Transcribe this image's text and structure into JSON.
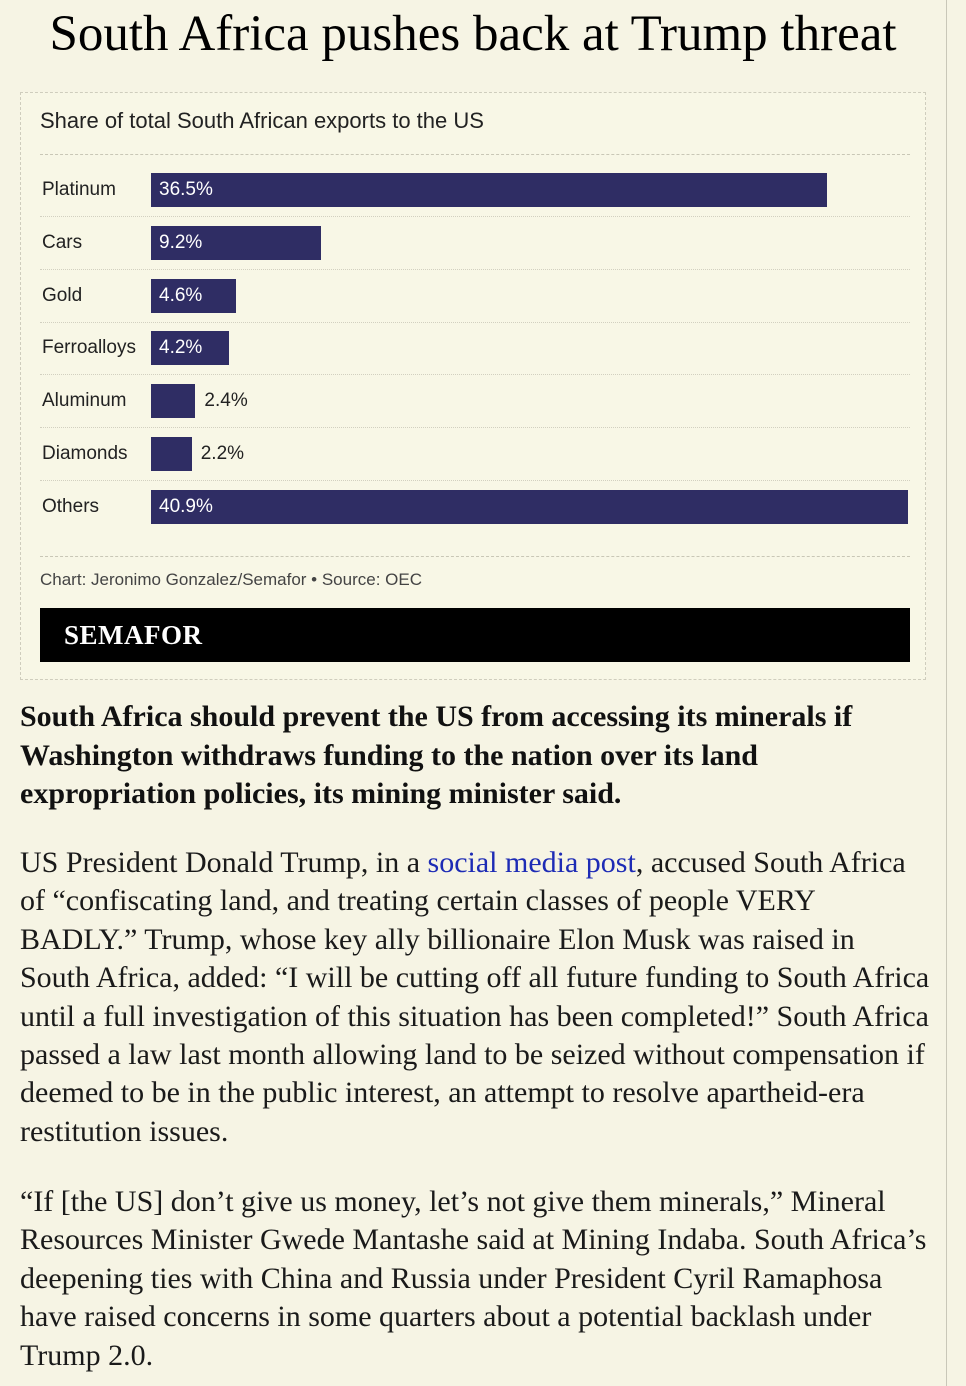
{
  "article": {
    "headline": "South Africa pushes back at Trump threat",
    "lede": "South Africa should prevent the US from accessing its minerals if Washington withdraws funding to the nation over its land expropriation policies, its mining minister said.",
    "paragraph1": {
      "before_link": "US President Donald Trump, in a ",
      "link_text": "social media post",
      "after_link": ", accused South Africa of “confiscating land, and treating certain classes of people VERY BADLY.” Trump, whose key ally billionaire Elon Musk was raised in South Africa, added: “I will be cutting off all future funding to South Africa until a full investigation of this situation has been completed!” South Africa passed a law last month allowing land to be seized without compensation if deemed to be in the public interest, an attempt to resolve apartheid-era restitution issues."
    },
    "paragraph2": "“If [the US] don’t give us money, let’s not give them minerals,” Mineral Resources Minister Gwede Mantashe said at Mining Indaba. South Africa’s deepening ties with China and Russia under President Cyril Ramaphosa have raised concerns in some quarters about a potential backlash under Trump 2.0."
  },
  "chart_data": {
    "type": "bar",
    "orientation": "horizontal",
    "title": "Share of total South African exports to the US",
    "categories": [
      "Platinum",
      "Cars",
      "Gold",
      "Ferroalloys",
      "Aluminum",
      "Diamonds",
      "Others"
    ],
    "values": [
      36.5,
      9.2,
      4.6,
      4.2,
      2.4,
      2.2,
      40.9
    ],
    "value_labels": [
      "36.5%",
      "9.2%",
      "4.6%",
      "4.2%",
      "2.4%",
      "2.2%",
      "40.9%"
    ],
    "unit": "%",
    "bar_color": "#2f2d64",
    "grid": true,
    "source": "Chart: Jeronimo Gonzalez/Semafor • Source: OEC"
  },
  "brand": {
    "name": "SEMAFOR"
  },
  "colors": {
    "background": "#f6f4e4",
    "link": "#1d2bb5",
    "bar": "#2f2d64"
  }
}
